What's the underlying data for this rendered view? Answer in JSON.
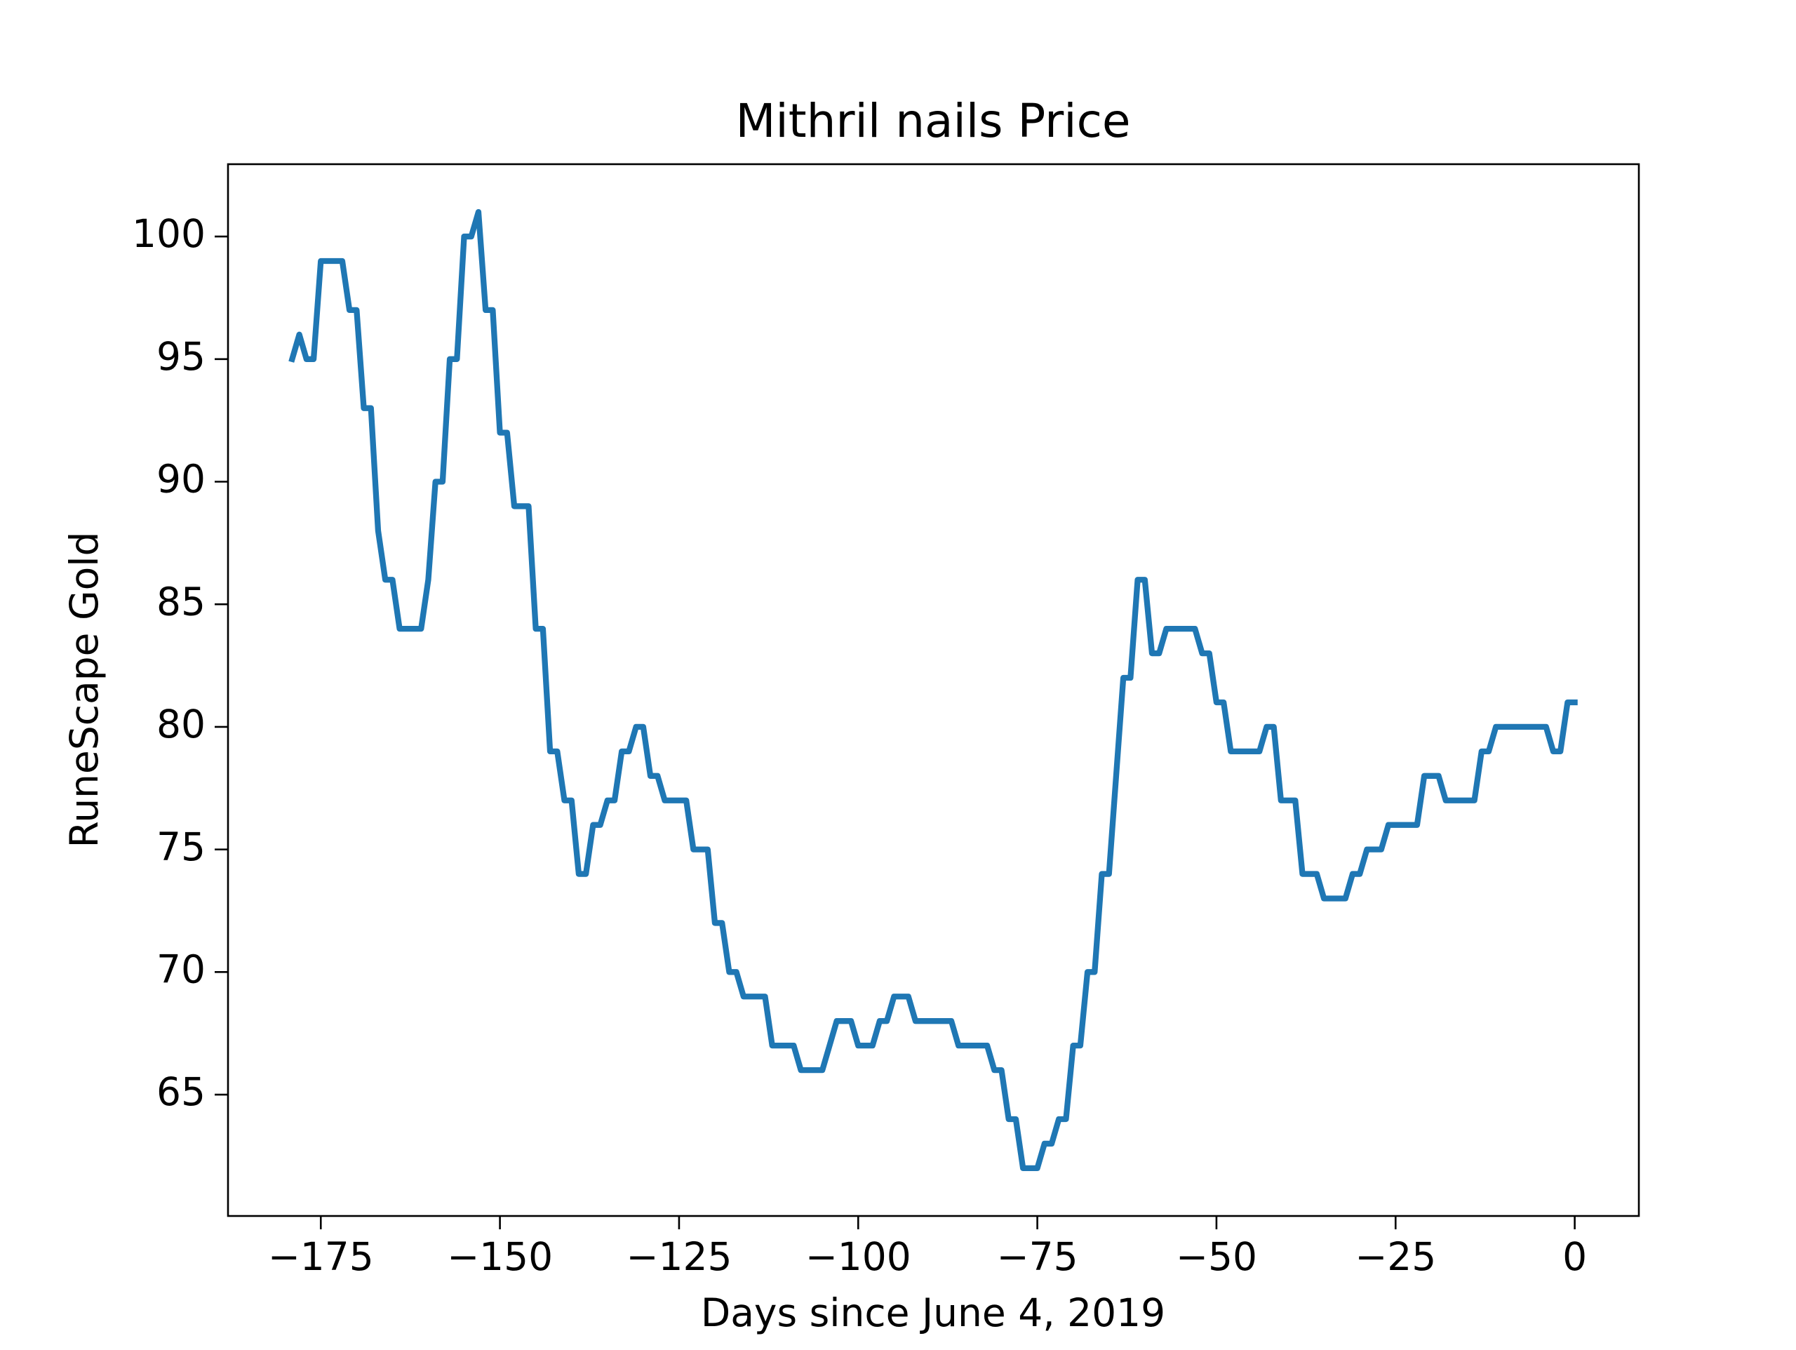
{
  "chart_data": {
    "type": "line",
    "title": "Mithril nails Price",
    "xlabel": "Days since June 4, 2019",
    "ylabel": "RuneScape Gold",
    "x": [
      -179,
      -178,
      -177,
      -176,
      -175,
      -174,
      -173,
      -172,
      -171,
      -170,
      -169,
      -168,
      -167,
      -166,
      -165,
      -164,
      -163,
      -162,
      -161,
      -160,
      -159,
      -158,
      -157,
      -156,
      -155,
      -154,
      -153,
      -152,
      -151,
      -150,
      -149,
      -148,
      -147,
      -146,
      -145,
      -144,
      -143,
      -142,
      -141,
      -140,
      -139,
      -138,
      -137,
      -136,
      -135,
      -134,
      -133,
      -132,
      -131,
      -130,
      -129,
      -128,
      -127,
      -126,
      -125,
      -124,
      -123,
      -122,
      -121,
      -120,
      -119,
      -118,
      -117,
      -116,
      -115,
      -114,
      -113,
      -112,
      -111,
      -110,
      -109,
      -108,
      -107,
      -106,
      -105,
      -104,
      -103,
      -102,
      -101,
      -100,
      -99,
      -98,
      -97,
      -96,
      -95,
      -94,
      -93,
      -92,
      -91,
      -90,
      -89,
      -88,
      -87,
      -86,
      -85,
      -84,
      -83,
      -82,
      -81,
      -80,
      -79,
      -78,
      -77,
      -76,
      -75,
      -74,
      -73,
      -72,
      -71,
      -70,
      -69,
      -68,
      -67,
      -66,
      -65,
      -64,
      -63,
      -62,
      -61,
      -60,
      -59,
      -58,
      -57,
      -56,
      -55,
      -54,
      -53,
      -52,
      -51,
      -50,
      -49,
      -48,
      -47,
      -46,
      -45,
      -44,
      -43,
      -42,
      -41,
      -40,
      -39,
      -38,
      -37,
      -36,
      -35,
      -34,
      -33,
      -32,
      -31,
      -30,
      -29,
      -28,
      -27,
      -26,
      -25,
      -24,
      -23,
      -22,
      -21,
      -20,
      -19,
      -18,
      -17,
      -16,
      -15,
      -14,
      -13,
      -12,
      -11,
      -10,
      -9,
      -8,
      -7,
      -6,
      -5,
      -4,
      -3,
      -2,
      -1,
      0
    ],
    "series": [
      {
        "color": "#1f77b4",
        "values": [
          95,
          96,
          95,
          95,
          99,
          99,
          99,
          99,
          97,
          97,
          93,
          93,
          88,
          86,
          86,
          84,
          84,
          84,
          84,
          86,
          90,
          90,
          95,
          95,
          100,
          100,
          101,
          97,
          97,
          92,
          92,
          89,
          89,
          89,
          84,
          84,
          79,
          79,
          77,
          77,
          74,
          74,
          76,
          76,
          77,
          77,
          79,
          79,
          80,
          80,
          78,
          78,
          77,
          77,
          77,
          77,
          75,
          75,
          75,
          72,
          72,
          70,
          70,
          69,
          69,
          69,
          69,
          67,
          67,
          67,
          67,
          66,
          66,
          66,
          66,
          67,
          68,
          68,
          68,
          67,
          67,
          67,
          68,
          68,
          69,
          69,
          69,
          68,
          68,
          68,
          68,
          68,
          68,
          67,
          67,
          67,
          67,
          67,
          66,
          66,
          64,
          64,
          62,
          62,
          62,
          63,
          63,
          64,
          64,
          67,
          67,
          70,
          70,
          74,
          74,
          78,
          82,
          82,
          86,
          86,
          83,
          83,
          84,
          84,
          84,
          84,
          84,
          83,
          83,
          81,
          81,
          79,
          79,
          79,
          79,
          79,
          80,
          80,
          77,
          77,
          77,
          74,
          74,
          74,
          73,
          73,
          73,
          73,
          74,
          74,
          75,
          75,
          75,
          76,
          76,
          76,
          76,
          76,
          78,
          78,
          78,
          77,
          77,
          77,
          77,
          77,
          79,
          79,
          80,
          80,
          80,
          80,
          80,
          80,
          80,
          80,
          79,
          79,
          81,
          81
        ]
      }
    ],
    "xlim": [
      -187.95,
      8.95
    ],
    "ylim": [
      60.05,
      102.95
    ],
    "xticks": [
      {
        "value": -175,
        "label": "−175"
      },
      {
        "value": -150,
        "label": "−150"
      },
      {
        "value": -125,
        "label": "−125"
      },
      {
        "value": -100,
        "label": "−100"
      },
      {
        "value": -75,
        "label": "−75"
      },
      {
        "value": -50,
        "label": "−50"
      },
      {
        "value": -25,
        "label": "−25"
      },
      0
    ],
    "yticks": [
      65,
      70,
      75,
      80,
      85,
      90,
      95,
      100
    ]
  }
}
